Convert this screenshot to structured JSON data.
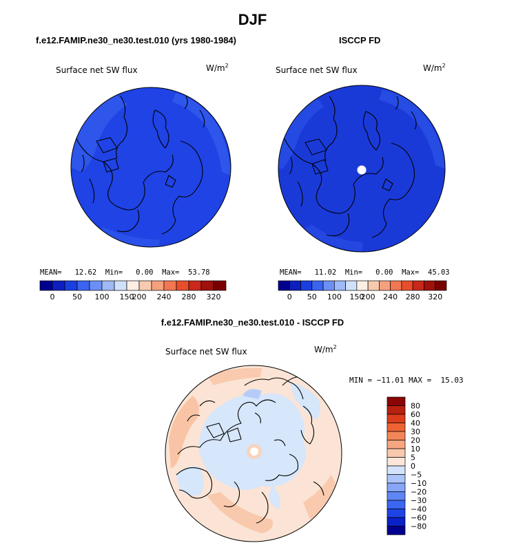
{
  "figure": {
    "title": "DJF"
  },
  "panels": [
    {
      "title": "f.e12.FAMIP.ne30_ne30.test.010 (yrs 1980-1984)",
      "variable": "Surface net SW flux",
      "units": "W/m",
      "units_sup": "2",
      "stats": {
        "mean_label": "MEAN=",
        "mean": "12.62",
        "min_label": "Min=",
        "min": "0.00",
        "max_label": "Max=",
        "max": "53.78"
      }
    },
    {
      "title": "ISCCP FD",
      "variable": "Surface net SW flux",
      "units": "W/m",
      "units_sup": "2",
      "stats": {
        "mean_label": "MEAN=",
        "mean": "11.02",
        "min_label": "Min=",
        "min": "0.00",
        "max_label": "Max=",
        "max": "45.03"
      }
    },
    {
      "title": "f.e12.FAMIP.ne30_ne30.test.010 - ISCCP FD",
      "variable": "Surface net SW flux",
      "units": "W/m",
      "units_sup": "2",
      "stats_text": "MIN = −11.01 MAX =  15.03"
    }
  ],
  "colorbars": {
    "absolute": {
      "colors": [
        "#00008f",
        "#0d1fbf",
        "#1a3fe0",
        "#3a64f0",
        "#6b8ff4",
        "#9fb8f8",
        "#d0e0fb",
        "#fbeee3",
        "#f8cbb0",
        "#f5a17e",
        "#f27752",
        "#e84e2c",
        "#c9281a",
        "#a0100c",
        "#7a0000"
      ],
      "ticks": [
        "0",
        "50",
        "100",
        "150",
        "200",
        "240",
        "280",
        "320"
      ]
    },
    "difference": {
      "colors": [
        "#00008f",
        "#0a20c8",
        "#1f44e6",
        "#3b66f0",
        "#5f86f4",
        "#87a6f7",
        "#adc4f9",
        "#d4e2fb",
        "#fbe6d9",
        "#f9c8ad",
        "#f6a681",
        "#f38658",
        "#ee6234",
        "#dc3d1c",
        "#b8200f",
        "#8a0606"
      ],
      "ticks": [
        "80",
        "60",
        "40",
        "30",
        "20",
        "10",
        "5",
        "0",
        "−5",
        "−10",
        "−20",
        "−30",
        "−40",
        "−60",
        "−80"
      ]
    }
  }
}
